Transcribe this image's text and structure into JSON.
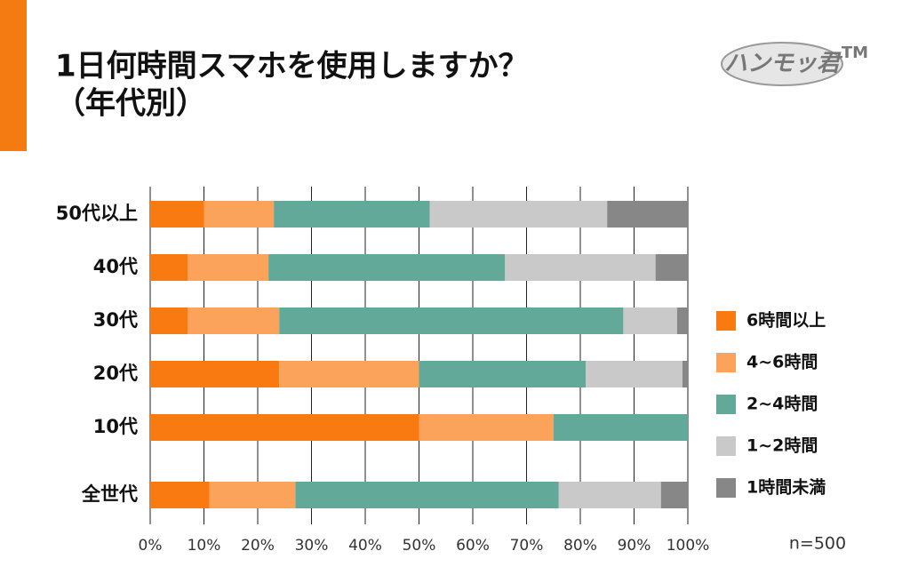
{
  "chart_data": {
    "type": "stacked-bar-horizontal",
    "title": "1日何時間スマホを使用しますか？",
    "subtitle": "（年代別）",
    "annotation": "n=500",
    "categories": [
      "50代以上",
      "40代",
      "30代",
      "20代",
      "10代",
      "全世代"
    ],
    "series": [
      {
        "name": "6時間以上",
        "color": "#f97a10",
        "values": [
          10,
          7,
          7,
          24,
          50,
          11
        ]
      },
      {
        "name": "4~6時間",
        "color": "#fba35a",
        "values": [
          13,
          15,
          17,
          26,
          25,
          16
        ]
      },
      {
        "name": "2~4時間",
        "color": "#62a99a",
        "values": [
          29,
          44,
          64,
          31,
          25,
          49
        ]
      },
      {
        "name": "1~2時間",
        "color": "#c9c9c9",
        "values": [
          33,
          28,
          10,
          18,
          0,
          19
        ]
      },
      {
        "name": "1時間未満",
        "color": "#878787",
        "values": [
          15,
          6,
          2,
          1,
          0,
          5
        ]
      }
    ],
    "xlim": [
      0,
      100
    ],
    "xticks": [
      {
        "value": 0,
        "label": "0%"
      },
      {
        "value": 10,
        "label": "10%"
      },
      {
        "value": 20,
        "label": "20%"
      },
      {
        "value": 30,
        "label": "30%"
      },
      {
        "value": 40,
        "label": "40%"
      },
      {
        "value": 50,
        "label": "50%"
      },
      {
        "value": 60,
        "label": "60%"
      },
      {
        "value": 70,
        "label": "70%"
      },
      {
        "value": 80,
        "label": "80%"
      },
      {
        "value": 90,
        "label": "90%"
      },
      {
        "value": 100,
        "label": "100%"
      }
    ],
    "grid": true,
    "legend": "right"
  },
  "logo": {
    "text": "ハンモッ君",
    "mark": "TM"
  }
}
